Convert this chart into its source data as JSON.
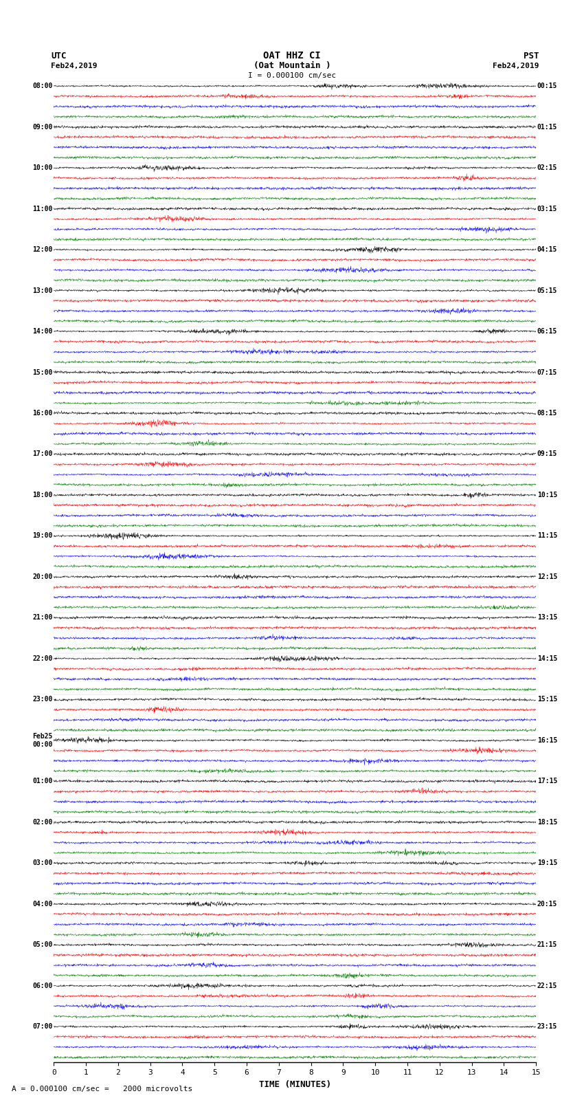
{
  "title_line1": "OAT HHZ CI",
  "title_line2": "(Oat Mountain )",
  "title_line3": "I = 0.000100 cm/sec",
  "label_utc": "UTC",
  "label_pst": "PST",
  "label_date_left": "Feb24,2019",
  "label_date_right": "Feb24,2019",
  "xlabel": "TIME (MINUTES)",
  "footnote": "A = 0.000100 cm/sec =   2000 microvolts",
  "left_times_utc": [
    "08:00",
    "09:00",
    "10:00",
    "11:00",
    "12:00",
    "13:00",
    "14:00",
    "15:00",
    "16:00",
    "17:00",
    "18:00",
    "19:00",
    "20:00",
    "21:00",
    "22:00",
    "23:00",
    "Feb25\n00:00",
    "01:00",
    "02:00",
    "03:00",
    "04:00",
    "05:00",
    "06:00",
    "07:00"
  ],
  "right_times_pst": [
    "00:15",
    "01:15",
    "02:15",
    "03:15",
    "04:15",
    "05:15",
    "06:15",
    "07:15",
    "08:15",
    "09:15",
    "10:15",
    "11:15",
    "12:15",
    "13:15",
    "14:15",
    "15:15",
    "16:15",
    "17:15",
    "18:15",
    "19:15",
    "20:15",
    "21:15",
    "22:15",
    "23:15"
  ],
  "colors": [
    "black",
    "red",
    "blue",
    "green"
  ],
  "n_rows": 96,
  "n_cols": 1800,
  "x_min": 0,
  "x_max": 15,
  "bg_color": "white",
  "trace_amplitude": 0.42,
  "seed": 42
}
